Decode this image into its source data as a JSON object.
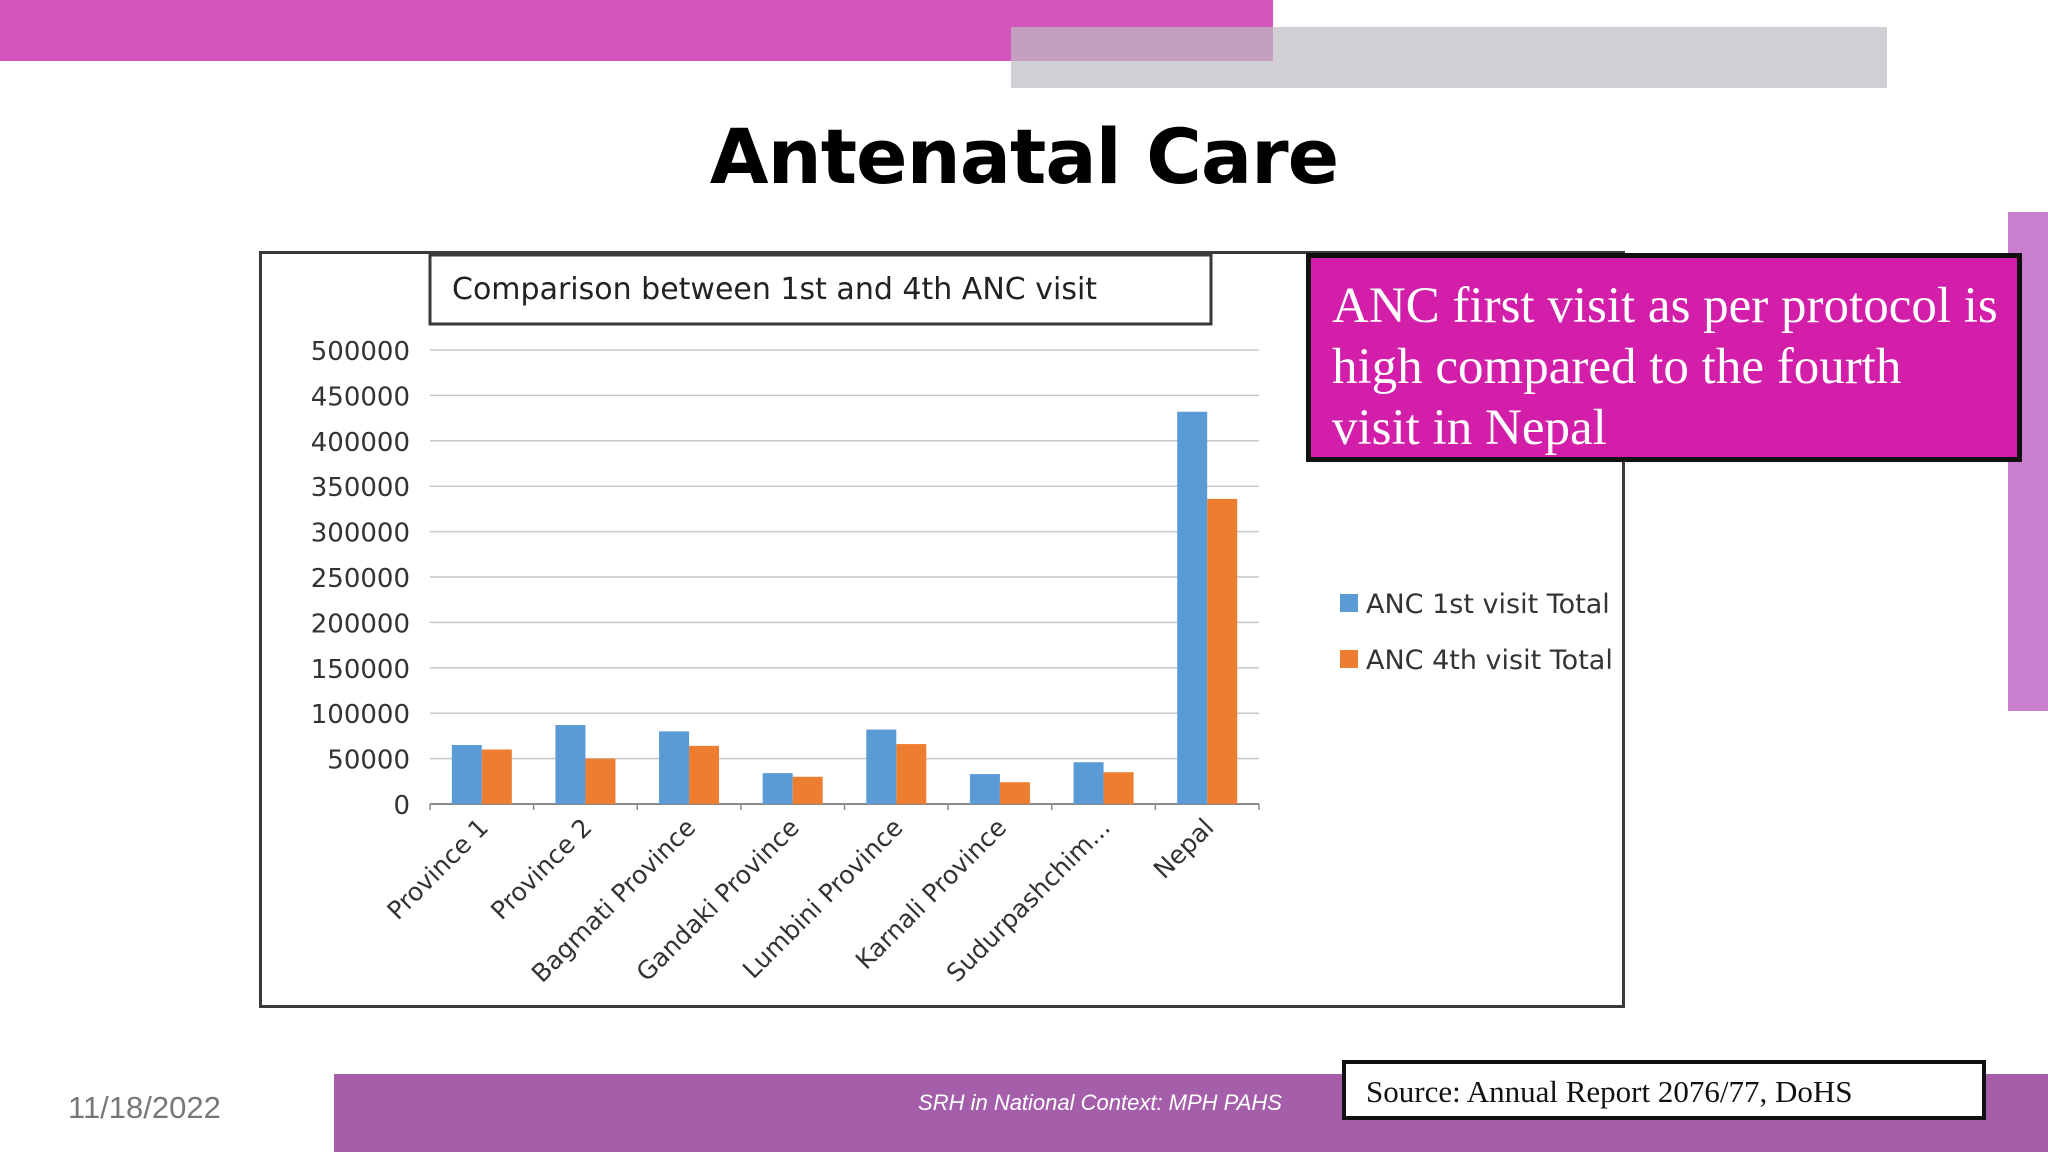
{
  "slide": {
    "title": "Antenatal Care",
    "callout": "ANC first visit as per protocol is high compared to the fourth visit in Nepal",
    "source": "Source: Annual Report 2076/77, DoHS",
    "footer_text": "SRH in National Context: MPH PAHS",
    "date": "11/18/2022"
  },
  "colors": {
    "pink_accent": "#d654bd",
    "gray_bar": "#c9c7cc",
    "violet_bar": "#a55faa",
    "callout_bg": "#d21ea9",
    "series_1": "#5b9bd5",
    "series_2": "#ed7d31"
  },
  "chart_data": {
    "type": "bar",
    "title": "Comparison between 1st and 4th ANC visit",
    "categories": [
      "Province 1",
      "Province 2",
      "Bagmati Province",
      "Gandaki Province",
      "Lumbini Province",
      "Karnali Province",
      "Sudurpashchim...",
      "Nepal"
    ],
    "series": [
      {
        "name": "ANC 1st visit Total",
        "color": "#5b9bd5",
        "values": [
          65000,
          87000,
          80000,
          34000,
          82000,
          33000,
          46000,
          432000
        ]
      },
      {
        "name": "ANC 4th visit Total",
        "color": "#ed7d31",
        "values": [
          60000,
          50000,
          64000,
          30000,
          66000,
          24000,
          35000,
          336000
        ]
      }
    ],
    "ylim": [
      0,
      500000
    ],
    "yticks": [
      "0",
      "50000",
      "100000",
      "150000",
      "200000",
      "250000",
      "300000",
      "350000",
      "400000",
      "450000",
      "500000"
    ],
    "grid": true,
    "legend": "right"
  }
}
